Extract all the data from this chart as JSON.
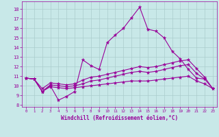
{
  "background_color": "#c8e8e8",
  "line_color": "#990099",
  "xlabel": "Windchill (Refroidissement éolien,°C)",
  "xticks": [
    0,
    1,
    2,
    3,
    4,
    5,
    6,
    7,
    8,
    9,
    10,
    11,
    12,
    13,
    14,
    15,
    16,
    17,
    18,
    19,
    20,
    21,
    22,
    23
  ],
  "yticks": [
    8,
    9,
    10,
    11,
    12,
    13,
    14,
    15,
    16,
    17,
    18
  ],
  "xlim": [
    -0.5,
    23.5
  ],
  "ylim": [
    7.8,
    18.8
  ],
  "grid_color": "#aacccc",
  "series": [
    {
      "x": [
        0,
        1,
        2,
        3,
        4,
        5,
        6,
        7,
        8,
        9,
        10,
        11,
        12,
        13,
        14,
        15,
        16,
        17,
        18,
        19,
        20,
        21,
        22
      ],
      "y": [
        10.8,
        10.7,
        9.4,
        10.0,
        8.5,
        8.9,
        9.4,
        12.7,
        12.1,
        11.7,
        14.5,
        15.3,
        16.0,
        17.1,
        18.2,
        15.9,
        15.7,
        15.0,
        13.6,
        12.8,
        11.7,
        10.8,
        10.7
      ]
    },
    {
      "x": [
        0,
        1,
        2,
        3,
        4,
        5,
        6,
        7,
        8,
        9,
        10,
        11,
        12,
        13,
        14,
        15,
        16,
        17,
        18,
        19,
        20,
        21,
        22,
        23
      ],
      "y": [
        10.8,
        10.7,
        9.4,
        10.1,
        10.0,
        9.9,
        10.0,
        10.2,
        10.5,
        10.6,
        10.8,
        11.0,
        11.2,
        11.4,
        11.5,
        11.4,
        11.5,
        11.7,
        11.9,
        12.1,
        12.2,
        11.3,
        10.7,
        9.7
      ]
    },
    {
      "x": [
        0,
        1,
        2,
        3,
        4,
        5,
        6,
        7,
        8,
        9,
        10,
        11,
        12,
        13,
        14,
        15,
        16,
        17,
        18,
        19,
        20,
        21,
        22,
        23
      ],
      "y": [
        10.8,
        10.7,
        9.7,
        10.3,
        10.2,
        10.1,
        10.2,
        10.6,
        10.9,
        11.0,
        11.2,
        11.4,
        11.6,
        11.8,
        12.0,
        11.9,
        12.0,
        12.2,
        12.4,
        12.6,
        12.7,
        11.8,
        10.9,
        9.7
      ]
    },
    {
      "x": [
        0,
        1,
        2,
        3,
        4,
        5,
        6,
        7,
        8,
        9,
        10,
        11,
        12,
        13,
        14,
        15,
        16,
        17,
        18,
        19,
        20,
        21,
        22,
        23
      ],
      "y": [
        10.8,
        10.7,
        9.4,
        9.9,
        9.8,
        9.7,
        9.8,
        9.9,
        10.0,
        10.1,
        10.2,
        10.3,
        10.4,
        10.5,
        10.5,
        10.5,
        10.6,
        10.7,
        10.8,
        10.9,
        11.0,
        10.5,
        10.2,
        9.7
      ]
    }
  ]
}
